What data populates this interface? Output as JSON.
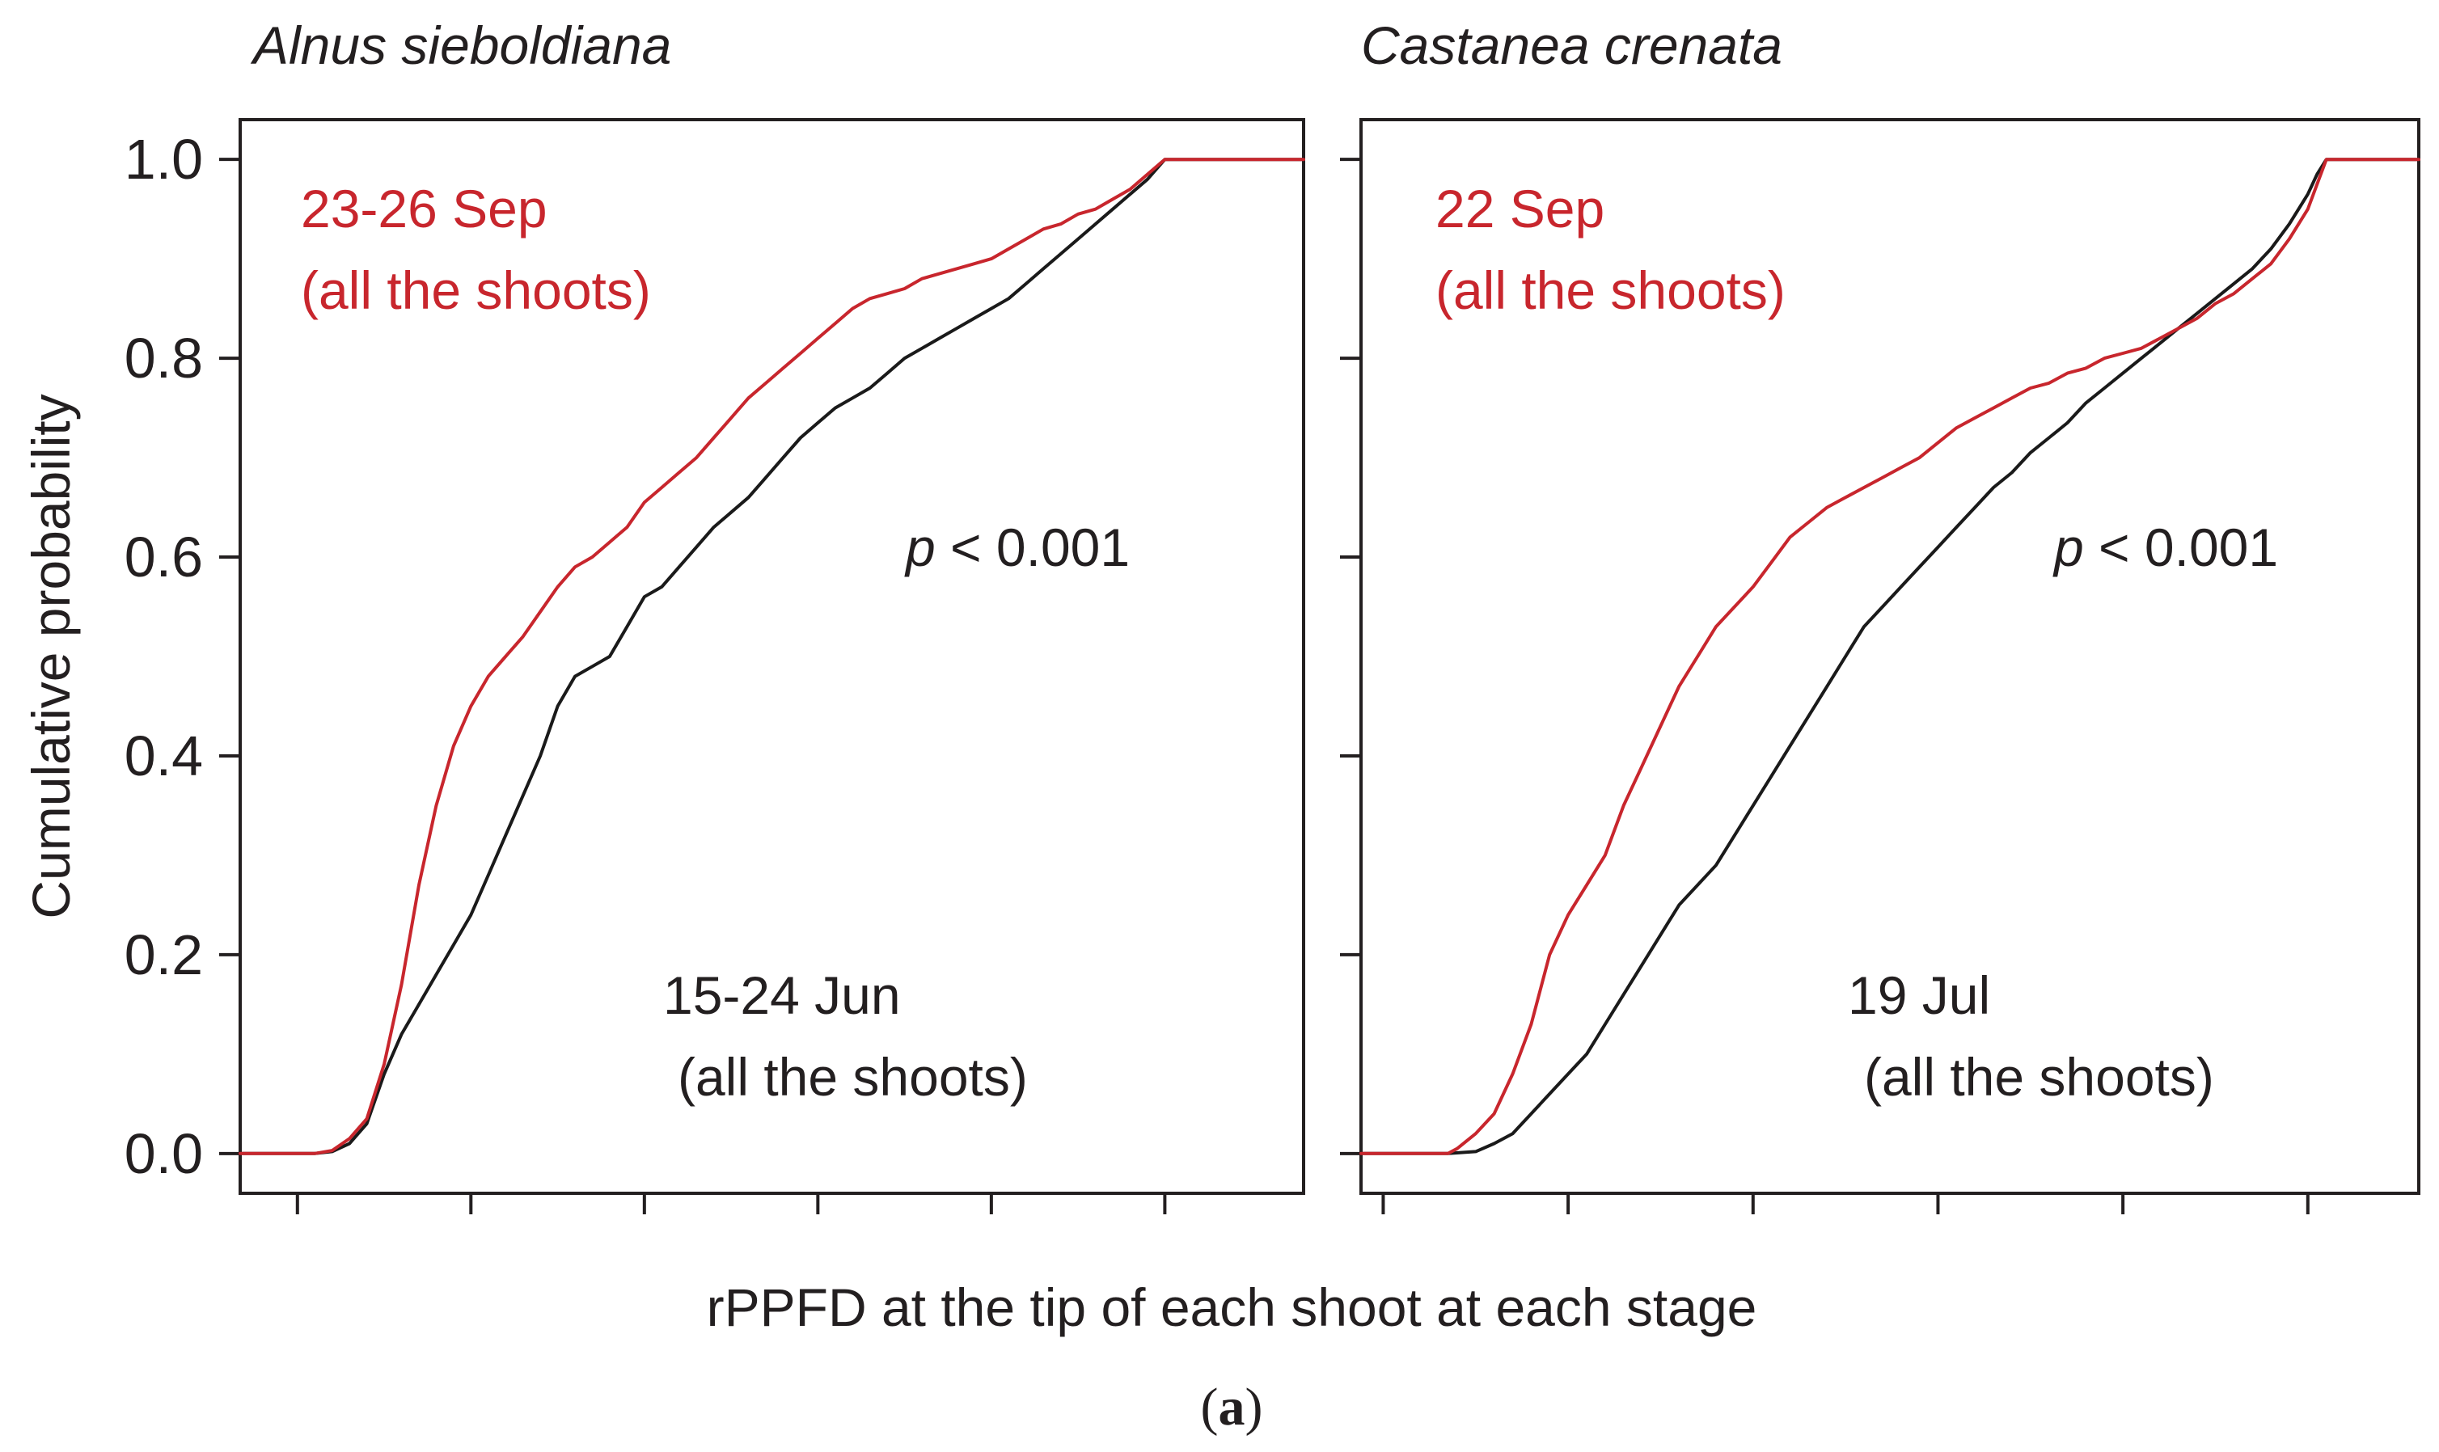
{
  "figure": {
    "x_axis_title": "rPPFD at the tip of each shoot at each stage",
    "y_axis_title": "Cumulative probability",
    "panel_label_open": "(",
    "panel_label_letter": "a",
    "panel_label_close": ")"
  },
  "colors": {
    "early": "#1a1a1a",
    "late": "#c8262d",
    "text": "#231f20"
  },
  "chart_data": [
    {
      "type": "line",
      "subtype": "empirical cumulative distribution",
      "title": "Alnus sieboldiana",
      "ylabel": "Cumulative probability",
      "xlabel": "rPPFD at the tip of each shoot at each stage",
      "xlim": [
        -0.33,
        5.8
      ],
      "ylim": [
        -0.04,
        1.04
      ],
      "y_ticks": [
        "0.0",
        "0.2",
        "0.4",
        "0.6",
        "0.8",
        "1.0"
      ],
      "x_tick_values": [
        0,
        1,
        2,
        3,
        4,
        5
      ],
      "x_tick_labels_shown": false,
      "annotation_p": "p",
      "annotation_rest": " < 0.001",
      "series": [
        {
          "name": "15-24 Jun (all the shoots)",
          "label_line1": "15-24 Jun",
          "label_line2": "(all the shoots)",
          "color_key": "early",
          "points": [
            [
              -0.33,
              0
            ],
            [
              0.1,
              0
            ],
            [
              0.2,
              0.002
            ],
            [
              0.3,
              0.01
            ],
            [
              0.4,
              0.03
            ],
            [
              0.5,
              0.08
            ],
            [
              0.6,
              0.12
            ],
            [
              0.7,
              0.15
            ],
            [
              0.8,
              0.18
            ],
            [
              0.9,
              0.21
            ],
            [
              1.0,
              0.24
            ],
            [
              1.1,
              0.28
            ],
            [
              1.2,
              0.32
            ],
            [
              1.3,
              0.36
            ],
            [
              1.4,
              0.4
            ],
            [
              1.5,
              0.45
            ],
            [
              1.6,
              0.48
            ],
            [
              1.7,
              0.49
            ],
            [
              1.8,
              0.5
            ],
            [
              1.9,
              0.53
            ],
            [
              2.0,
              0.56
            ],
            [
              2.1,
              0.57
            ],
            [
              2.2,
              0.59
            ],
            [
              2.3,
              0.61
            ],
            [
              2.4,
              0.63
            ],
            [
              2.5,
              0.645
            ],
            [
              2.6,
              0.66
            ],
            [
              2.7,
              0.68
            ],
            [
              2.8,
              0.7
            ],
            [
              2.9,
              0.72
            ],
            [
              3.0,
              0.735
            ],
            [
              3.1,
              0.75
            ],
            [
              3.2,
              0.76
            ],
            [
              3.3,
              0.77
            ],
            [
              3.4,
              0.785
            ],
            [
              3.5,
              0.8
            ],
            [
              3.6,
              0.81
            ],
            [
              3.7,
              0.82
            ],
            [
              3.8,
              0.83
            ],
            [
              3.9,
              0.84
            ],
            [
              4.0,
              0.85
            ],
            [
              4.1,
              0.86
            ],
            [
              4.2,
              0.875
            ],
            [
              4.3,
              0.89
            ],
            [
              4.4,
              0.905
            ],
            [
              4.5,
              0.92
            ],
            [
              4.6,
              0.935
            ],
            [
              4.7,
              0.95
            ],
            [
              4.8,
              0.965
            ],
            [
              4.9,
              0.98
            ],
            [
              5.0,
              1.0
            ],
            [
              5.8,
              1.0
            ]
          ]
        },
        {
          "name": "23-26 Sep (all the shoots)",
          "label_line1": "23-26 Sep",
          "label_line2": "(all the shoots)",
          "color_key": "late",
          "points": [
            [
              -0.33,
              0
            ],
            [
              0.1,
              0
            ],
            [
              0.2,
              0.003
            ],
            [
              0.3,
              0.015
            ],
            [
              0.4,
              0.035
            ],
            [
              0.5,
              0.09
            ],
            [
              0.6,
              0.17
            ],
            [
              0.7,
              0.27
            ],
            [
              0.8,
              0.35
            ],
            [
              0.9,
              0.41
            ],
            [
              1.0,
              0.45
            ],
            [
              1.1,
              0.48
            ],
            [
              1.2,
              0.5
            ],
            [
              1.3,
              0.52
            ],
            [
              1.4,
              0.545
            ],
            [
              1.5,
              0.57
            ],
            [
              1.6,
              0.59
            ],
            [
              1.7,
              0.6
            ],
            [
              1.8,
              0.615
            ],
            [
              1.9,
              0.63
            ],
            [
              2.0,
              0.655
            ],
            [
              2.1,
              0.67
            ],
            [
              2.2,
              0.685
            ],
            [
              2.3,
              0.7
            ],
            [
              2.4,
              0.72
            ],
            [
              2.5,
              0.74
            ],
            [
              2.6,
              0.76
            ],
            [
              2.7,
              0.775
            ],
            [
              2.8,
              0.79
            ],
            [
              2.9,
              0.805
            ],
            [
              3.0,
              0.82
            ],
            [
              3.1,
              0.835
            ],
            [
              3.2,
              0.85
            ],
            [
              3.3,
              0.86
            ],
            [
              3.4,
              0.865
            ],
            [
              3.5,
              0.87
            ],
            [
              3.6,
              0.88
            ],
            [
              3.7,
              0.885
            ],
            [
              3.8,
              0.89
            ],
            [
              3.9,
              0.895
            ],
            [
              4.0,
              0.9
            ],
            [
              4.1,
              0.91
            ],
            [
              4.2,
              0.92
            ],
            [
              4.3,
              0.93
            ],
            [
              4.4,
              0.935
            ],
            [
              4.5,
              0.945
            ],
            [
              4.6,
              0.95
            ],
            [
              4.7,
              0.96
            ],
            [
              4.8,
              0.97
            ],
            [
              4.9,
              0.985
            ],
            [
              5.0,
              1.0
            ],
            [
              5.8,
              1.0
            ]
          ]
        }
      ]
    },
    {
      "type": "line",
      "subtype": "empirical cumulative distribution",
      "title": "Castanea crenata",
      "ylabel": "Cumulative probability",
      "xlabel": "rPPFD at the tip of each shoot at each stage",
      "xlim": [
        -0.12,
        5.6
      ],
      "ylim": [
        -0.04,
        1.04
      ],
      "y_ticks": [
        "0.0",
        "0.2",
        "0.4",
        "0.6",
        "0.8",
        "1.0"
      ],
      "x_tick_values": [
        0,
        1,
        2,
        3,
        4,
        5
      ],
      "x_tick_labels_shown": false,
      "annotation_p": "p",
      "annotation_rest": " < 0.001",
      "series": [
        {
          "name": "19 Jul (all the shoots)",
          "label_line1": "19 Jul",
          "label_line2": "(all the shoots)",
          "color_key": "early",
          "points": [
            [
              -0.12,
              0
            ],
            [
              0.35,
              0
            ],
            [
              0.5,
              0.002
            ],
            [
              0.6,
              0.01
            ],
            [
              0.7,
              0.02
            ],
            [
              0.8,
              0.04
            ],
            [
              0.9,
              0.06
            ],
            [
              1.0,
              0.08
            ],
            [
              1.1,
              0.1
            ],
            [
              1.2,
              0.13
            ],
            [
              1.3,
              0.16
            ],
            [
              1.4,
              0.19
            ],
            [
              1.5,
              0.22
            ],
            [
              1.6,
              0.25
            ],
            [
              1.7,
              0.27
            ],
            [
              1.8,
              0.29
            ],
            [
              1.9,
              0.32
            ],
            [
              2.0,
              0.35
            ],
            [
              2.1,
              0.38
            ],
            [
              2.2,
              0.41
            ],
            [
              2.3,
              0.44
            ],
            [
              2.4,
              0.47
            ],
            [
              2.5,
              0.5
            ],
            [
              2.6,
              0.53
            ],
            [
              2.7,
              0.55
            ],
            [
              2.8,
              0.57
            ],
            [
              2.9,
              0.59
            ],
            [
              3.0,
              0.61
            ],
            [
              3.1,
              0.63
            ],
            [
              3.2,
              0.65
            ],
            [
              3.3,
              0.67
            ],
            [
              3.4,
              0.685
            ],
            [
              3.5,
              0.705
            ],
            [
              3.6,
              0.72
            ],
            [
              3.7,
              0.735
            ],
            [
              3.8,
              0.755
            ],
            [
              3.9,
              0.77
            ],
            [
              4.0,
              0.785
            ],
            [
              4.1,
              0.8
            ],
            [
              4.2,
              0.815
            ],
            [
              4.3,
              0.83
            ],
            [
              4.4,
              0.845
            ],
            [
              4.5,
              0.86
            ],
            [
              4.6,
              0.875
            ],
            [
              4.7,
              0.89
            ],
            [
              4.8,
              0.91
            ],
            [
              4.9,
              0.935
            ],
            [
              5.0,
              0.965
            ],
            [
              5.05,
              0.985
            ],
            [
              5.1,
              1.0
            ],
            [
              5.6,
              1.0
            ]
          ]
        },
        {
          "name": "22 Sep (all the shoots)",
          "label_line1": "22 Sep",
          "label_line2": "(all the shoots)",
          "color_key": "late",
          "points": [
            [
              -0.12,
              0
            ],
            [
              0.35,
              0
            ],
            [
              0.4,
              0.005
            ],
            [
              0.5,
              0.02
            ],
            [
              0.6,
              0.04
            ],
            [
              0.7,
              0.08
            ],
            [
              0.8,
              0.13
            ],
            [
              0.9,
              0.2
            ],
            [
              1.0,
              0.24
            ],
            [
              1.1,
              0.27
            ],
            [
              1.2,
              0.3
            ],
            [
              1.3,
              0.35
            ],
            [
              1.4,
              0.39
            ],
            [
              1.5,
              0.43
            ],
            [
              1.6,
              0.47
            ],
            [
              1.7,
              0.5
            ],
            [
              1.8,
              0.53
            ],
            [
              1.9,
              0.55
            ],
            [
              2.0,
              0.57
            ],
            [
              2.1,
              0.595
            ],
            [
              2.2,
              0.62
            ],
            [
              2.3,
              0.635
            ],
            [
              2.4,
              0.65
            ],
            [
              2.5,
              0.66
            ],
            [
              2.6,
              0.67
            ],
            [
              2.7,
              0.68
            ],
            [
              2.8,
              0.69
            ],
            [
              2.9,
              0.7
            ],
            [
              3.0,
              0.715
            ],
            [
              3.1,
              0.73
            ],
            [
              3.2,
              0.74
            ],
            [
              3.3,
              0.75
            ],
            [
              3.4,
              0.76
            ],
            [
              3.5,
              0.77
            ],
            [
              3.6,
              0.775
            ],
            [
              3.7,
              0.785
            ],
            [
              3.8,
              0.79
            ],
            [
              3.9,
              0.8
            ],
            [
              4.0,
              0.805
            ],
            [
              4.1,
              0.81
            ],
            [
              4.2,
              0.82
            ],
            [
              4.3,
              0.83
            ],
            [
              4.4,
              0.84
            ],
            [
              4.5,
              0.855
            ],
            [
              4.6,
              0.865
            ],
            [
              4.7,
              0.88
            ],
            [
              4.8,
              0.895
            ],
            [
              4.9,
              0.92
            ],
            [
              5.0,
              0.95
            ],
            [
              5.05,
              0.975
            ],
            [
              5.1,
              1.0
            ],
            [
              5.6,
              1.0
            ]
          ]
        }
      ]
    }
  ]
}
